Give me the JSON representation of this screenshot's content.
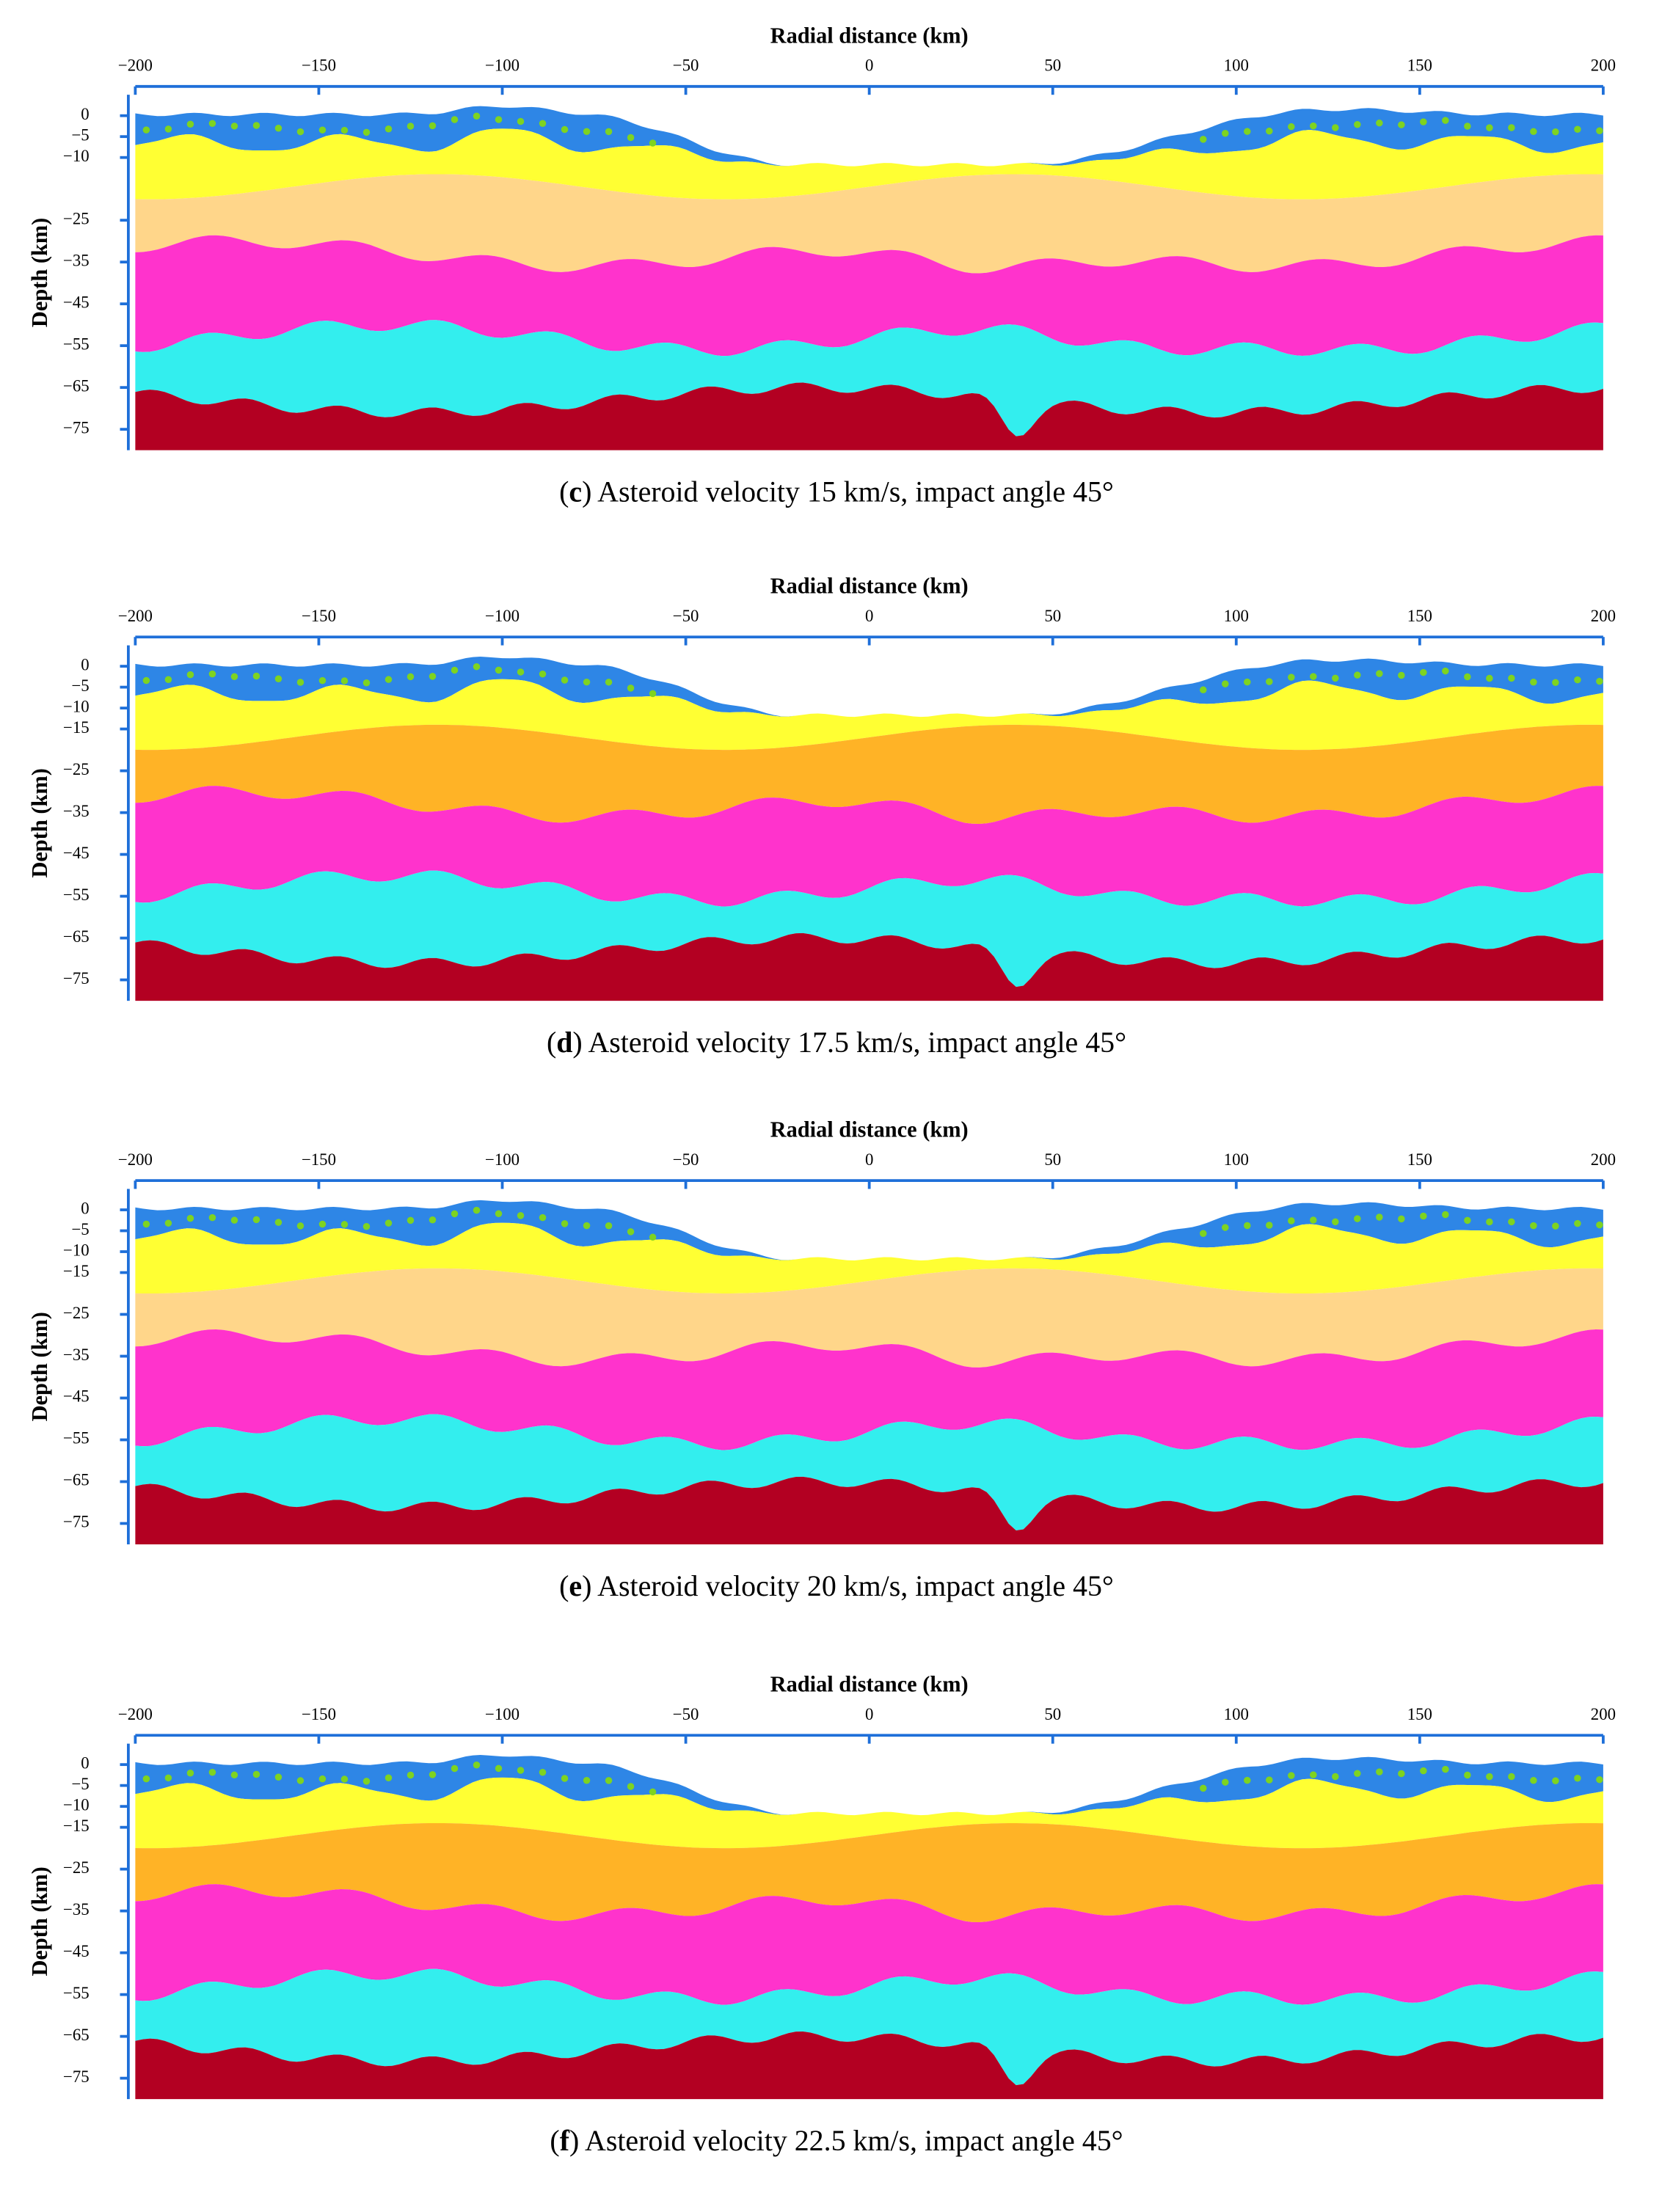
{
  "panels": [
    {
      "x_label": "Radial distance (km)",
      "y_label": "Depth (km)",
      "xlim": [
        -200,
        200
      ],
      "xticks": [
        {
          "value": -200,
          "label": "−200"
        },
        {
          "value": -150,
          "label": "−150"
        },
        {
          "value": -100,
          "label": "−100"
        },
        {
          "value": -50,
          "label": "−50"
        },
        0,
        50,
        100,
        150,
        200
      ],
      "ylim": [
        5,
        -80
      ],
      "yticks": [
        0,
        {
          "value": -5,
          "label": "−5"
        },
        {
          "value": -10,
          "label": "−10"
        },
        {
          "value": -25,
          "label": "−25"
        },
        {
          "value": -35,
          "label": "−35"
        },
        {
          "value": -45,
          "label": "−45"
        },
        {
          "value": -55,
          "label": "−55"
        },
        {
          "value": -65,
          "label": "−65"
        },
        {
          "value": -75,
          "label": "−75"
        }
      ],
      "layer_colors": [
        "#2e86e6",
        "#ffff33",
        "#ffd68a",
        "#ff33cc",
        "#33eeee",
        "#b30022"
      ],
      "caption": [
        "(",
        "c",
        ") Asteroid velocity 15 km/s, impact angle 45°"
      ]
    },
    {
      "x_label": "Radial distance (km)",
      "y_label": "Depth (km)",
      "xlim": [
        -200,
        200
      ],
      "xticks": [
        {
          "value": -200,
          "label": "−200"
        },
        {
          "value": -150,
          "label": "−150"
        },
        {
          "value": -100,
          "label": "−100"
        },
        {
          "value": -50,
          "label": "−50"
        },
        0,
        50,
        100,
        150,
        200
      ],
      "ylim": [
        5,
        -80
      ],
      "yticks": [
        0,
        {
          "value": -5,
          "label": "−5"
        },
        {
          "value": -10,
          "label": "−10"
        },
        {
          "value": -15,
          "label": "−15"
        },
        {
          "value": -25,
          "label": "−25"
        },
        {
          "value": -35,
          "label": "−35"
        },
        {
          "value": -45,
          "label": "−45"
        },
        {
          "value": -55,
          "label": "−55"
        },
        {
          "value": -65,
          "label": "−65"
        },
        {
          "value": -75,
          "label": "−75"
        }
      ],
      "layer_colors": [
        "#2e86e6",
        "#ffff33",
        "#ffb326",
        "#ff33cc",
        "#33eeee",
        "#b30022"
      ],
      "caption": [
        "(",
        "d",
        ") Asteroid velocity 17.5 km/s, impact angle 45°"
      ]
    },
    {
      "x_label": "Radial distance (km)",
      "y_label": "Depth (km)",
      "xlim": [
        -200,
        200
      ],
      "xticks": [
        {
          "value": -200,
          "label": "−200"
        },
        {
          "value": -150,
          "label": "−150"
        },
        {
          "value": -100,
          "label": "−100"
        },
        {
          "value": -50,
          "label": "−50"
        },
        0,
        50,
        100,
        150,
        200
      ],
      "ylim": [
        5,
        -80
      ],
      "yticks": [
        0,
        {
          "value": -5,
          "label": "−5"
        },
        {
          "value": -10,
          "label": "−10"
        },
        {
          "value": -15,
          "label": "−15"
        },
        {
          "value": -25,
          "label": "−25"
        },
        {
          "value": -35,
          "label": "−35"
        },
        {
          "value": -45,
          "label": "−45"
        },
        {
          "value": -55,
          "label": "−55"
        },
        {
          "value": -65,
          "label": "−65"
        },
        {
          "value": -75,
          "label": "−75"
        }
      ],
      "layer_colors": [
        "#2e86e6",
        "#ffff33",
        "#ffd68a",
        "#ff33cc",
        "#33eeee",
        "#b30022"
      ],
      "caption": [
        "(",
        "e",
        ") Asteroid velocity 20 km/s, impact angle 45°"
      ]
    },
    {
      "x_label": "Radial distance (km)",
      "y_label": "Depth (km)",
      "xlim": [
        -200,
        200
      ],
      "xticks": [
        {
          "value": -200,
          "label": "−200"
        },
        {
          "value": -150,
          "label": "−150"
        },
        {
          "value": -100,
          "label": "−100"
        },
        {
          "value": -50,
          "label": "−50"
        },
        0,
        50,
        100,
        150,
        200
      ],
      "ylim": [
        5,
        -80
      ],
      "yticks": [
        0,
        {
          "value": -5,
          "label": "−5"
        },
        {
          "value": -10,
          "label": "−10"
        },
        {
          "value": -15,
          "label": "−15"
        },
        {
          "value": -25,
          "label": "−25"
        },
        {
          "value": -35,
          "label": "−35"
        },
        {
          "value": -45,
          "label": "−45"
        },
        {
          "value": -55,
          "label": "−55"
        },
        {
          "value": -65,
          "label": "−65"
        },
        {
          "value": -75,
          "label": "−75"
        }
      ],
      "layer_colors": [
        "#2e86e6",
        "#ffff33",
        "#ffb326",
        "#ff33cc",
        "#33eeee",
        "#b30022"
      ],
      "caption": [
        "(",
        "f",
        ") Asteroid velocity 22.5 km/s, impact angle 45°"
      ]
    }
  ]
}
